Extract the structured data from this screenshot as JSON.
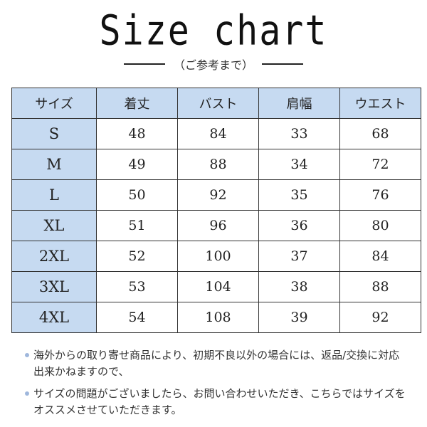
{
  "title": "Size chart",
  "subtitle": "（ご参考まで）",
  "table": {
    "headers": [
      "サイズ",
      "着丈",
      "バスト",
      "肩幅",
      "ウエスト"
    ],
    "rows": [
      [
        "S",
        "48",
        "84",
        "33",
        "68"
      ],
      [
        "M",
        "49",
        "88",
        "34",
        "72"
      ],
      [
        "L",
        "50",
        "92",
        "35",
        "76"
      ],
      [
        "XL",
        "51",
        "96",
        "36",
        "80"
      ],
      [
        "2XL",
        "52",
        "100",
        "37",
        "84"
      ],
      [
        "3XL",
        "53",
        "104",
        "38",
        "88"
      ],
      [
        "4XL",
        "54",
        "108",
        "39",
        "92"
      ]
    ]
  },
  "notes": [
    "海外からの取り寄せ商品により、初期不良以外の場合には、返品/交換に対応出来かねますので、",
    "サイズの問題がございましたら、お問い合わせいただき、こちらではサイズをオススメさせていただきます。"
  ],
  "colors": {
    "header_bg": "#c6daf1",
    "bullet": "#9fb7dc"
  }
}
